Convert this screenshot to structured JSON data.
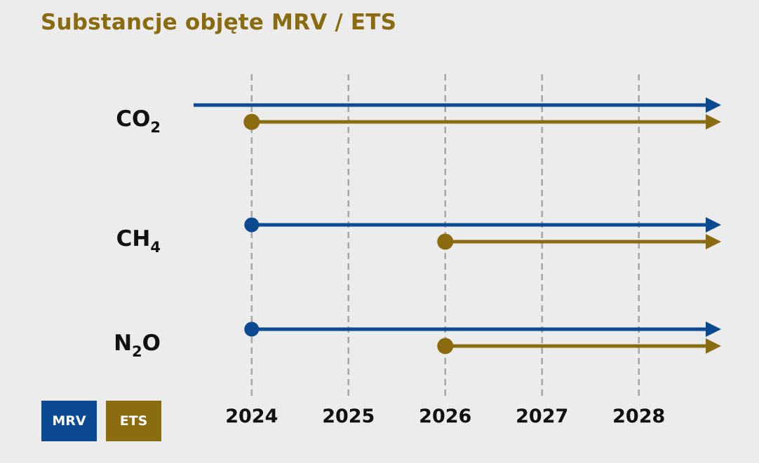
{
  "title": "Substancje objęte MRV / ETS",
  "colors": {
    "mrv": "#0b4a93",
    "ets": "#8a6b10",
    "grid": "#a6a6a6",
    "label": "#111111",
    "background": "#ececec"
  },
  "legend": [
    {
      "key": "mrv",
      "label": "MRV"
    },
    {
      "key": "ets",
      "label": "ETS"
    }
  ],
  "chart_data": {
    "type": "timeline",
    "title": "Substancje objęte MRV / ETS",
    "x_ticks": [
      "2024",
      "2025",
      "2026",
      "2027",
      "2028"
    ],
    "x_range": [
      2023.4,
      2028.85
    ],
    "grid": true,
    "legend_position": "bottom-left",
    "substances": [
      {
        "id": "co2",
        "name": "CO",
        "subscript": "2",
        "series": [
          {
            "key": "mrv",
            "start": 2023.4,
            "open_start": true,
            "open_end": true
          },
          {
            "key": "ets",
            "start": 2024,
            "open_start": false,
            "open_end": true
          }
        ]
      },
      {
        "id": "ch4",
        "name": "CH",
        "subscript": "4",
        "series": [
          {
            "key": "mrv",
            "start": 2024,
            "open_start": false,
            "open_end": true
          },
          {
            "key": "ets",
            "start": 2026,
            "open_start": false,
            "open_end": true
          }
        ]
      },
      {
        "id": "n2o",
        "name": "N",
        "subscript": "2",
        "suffix": "O",
        "series": [
          {
            "key": "mrv",
            "start": 2024,
            "open_start": false,
            "open_end": true
          },
          {
            "key": "ets",
            "start": 2026,
            "open_start": false,
            "open_end": true
          }
        ]
      }
    ]
  }
}
